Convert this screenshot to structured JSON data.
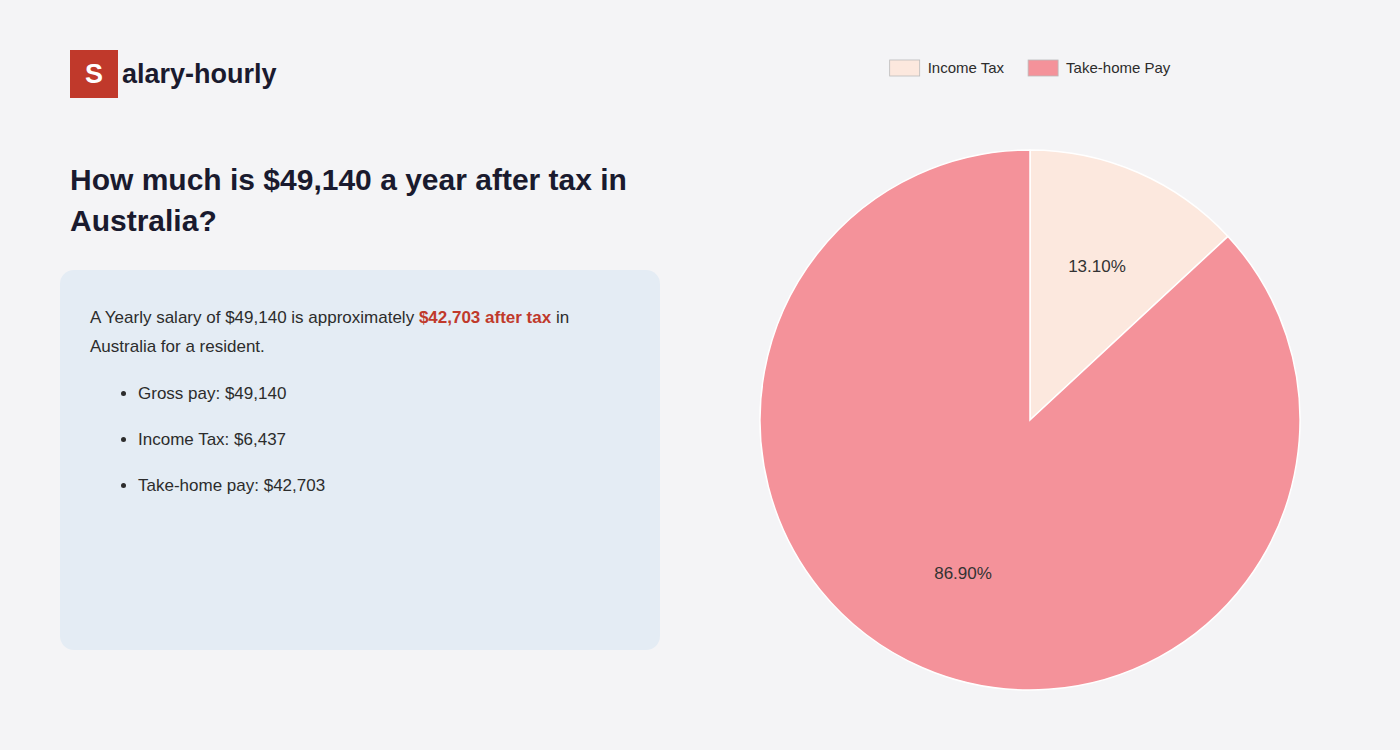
{
  "chart_data": {
    "type": "pie",
    "title": "How much is $49,140 a year after tax in Australia?",
    "annotations": [
      "S",
      "alary-hourly",
      "A Yearly salary of $49,140 is approximately ",
      "$42,703 after tax",
      " in",
      "Australia for a resident.",
      "Gross pay: $49,140",
      "Income Tax: $6,437",
      "Take-home pay: $42,703"
    ],
    "categories": [
      "Income Tax",
      "Take-home Pay"
    ],
    "values": [
      13.1,
      86.9
    ],
    "value_labels": [
      "13.10%",
      "86.90%"
    ],
    "colors": [
      "#fce8de",
      "#f4929a"
    ],
    "data_labels": true,
    "legend": "top"
  }
}
